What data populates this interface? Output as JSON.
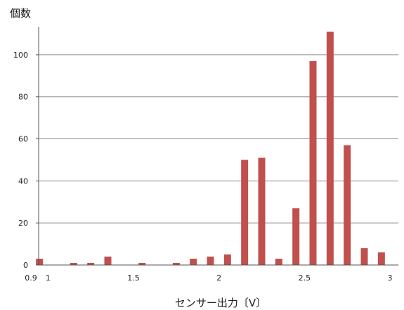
{
  "chart_data": {
    "type": "bar",
    "title": "",
    "ylabel": "個数",
    "xlabel": "センサー出力〔V〕",
    "xlim": [
      0.9,
      3.0
    ],
    "ylim": [
      0,
      110
    ],
    "grid": true,
    "legend": "none",
    "bar_color": "#c0504d",
    "xticks": [
      {
        "value": 0.9,
        "label": "0.9"
      },
      {
        "value": 1.0,
        "label": "1"
      },
      {
        "value": 1.5,
        "label": "1.5"
      },
      {
        "value": 2.0,
        "label": "2"
      },
      {
        "value": 2.5,
        "label": "2.5"
      },
      {
        "value": 3.0,
        "label": "3"
      }
    ],
    "yticks": [
      0,
      20,
      40,
      60,
      80,
      100
    ],
    "x": [
      0.95,
      1.05,
      1.15,
      1.25,
      1.35,
      1.45,
      1.55,
      1.65,
      1.75,
      1.85,
      1.95,
      2.05,
      2.15,
      2.25,
      2.35,
      2.45,
      2.55,
      2.65,
      2.75,
      2.85,
      2.95
    ],
    "values": [
      3,
      0,
      1,
      1,
      4,
      0,
      1,
      0,
      1,
      3,
      4,
      5,
      50,
      51,
      3,
      27,
      97,
      111,
      57,
      8,
      6
    ]
  }
}
